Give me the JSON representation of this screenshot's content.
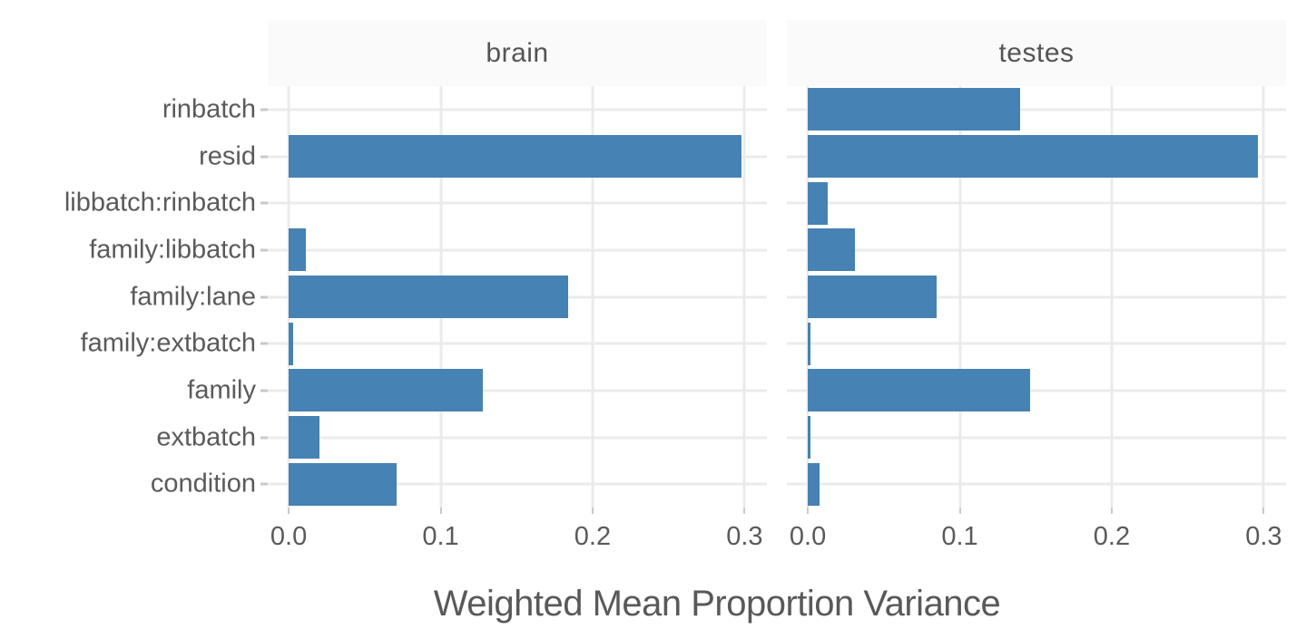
{
  "chart_data": {
    "type": "bar",
    "orientation": "horizontal",
    "faceted": true,
    "facet_titles": [
      "brain",
      "testes"
    ],
    "categories": [
      "rinbatch",
      "resid",
      "libbatch:rinbatch",
      "family:libbatch",
      "family:lane",
      "family:extbatch",
      "family",
      "extbatch",
      "condition"
    ],
    "series": [
      {
        "name": "brain",
        "values": [
          0.0,
          0.298,
          0.0,
          0.011,
          0.184,
          0.003,
          0.128,
          0.02,
          0.071
        ]
      },
      {
        "name": "testes",
        "values": [
          0.14,
          0.296,
          0.013,
          0.031,
          0.085,
          0.002,
          0.146,
          0.002,
          0.008
        ]
      }
    ],
    "title": "",
    "xlabel": "Weighted Mean Proportion Variance",
    "ylabel": "",
    "xlim": [
      0,
      0.315
    ],
    "x_tick_values": [
      0.0,
      0.1,
      0.2,
      0.3
    ],
    "x_tick_labels": [
      "0.0",
      "0.1",
      "0.2",
      "0.3"
    ],
    "grid": true,
    "legend_position": "none",
    "bar_color": "#4682b4",
    "gridline_color": "#ebebeb",
    "strip_background": "#fafafa",
    "axis_text_color": "#5a5a5a"
  }
}
